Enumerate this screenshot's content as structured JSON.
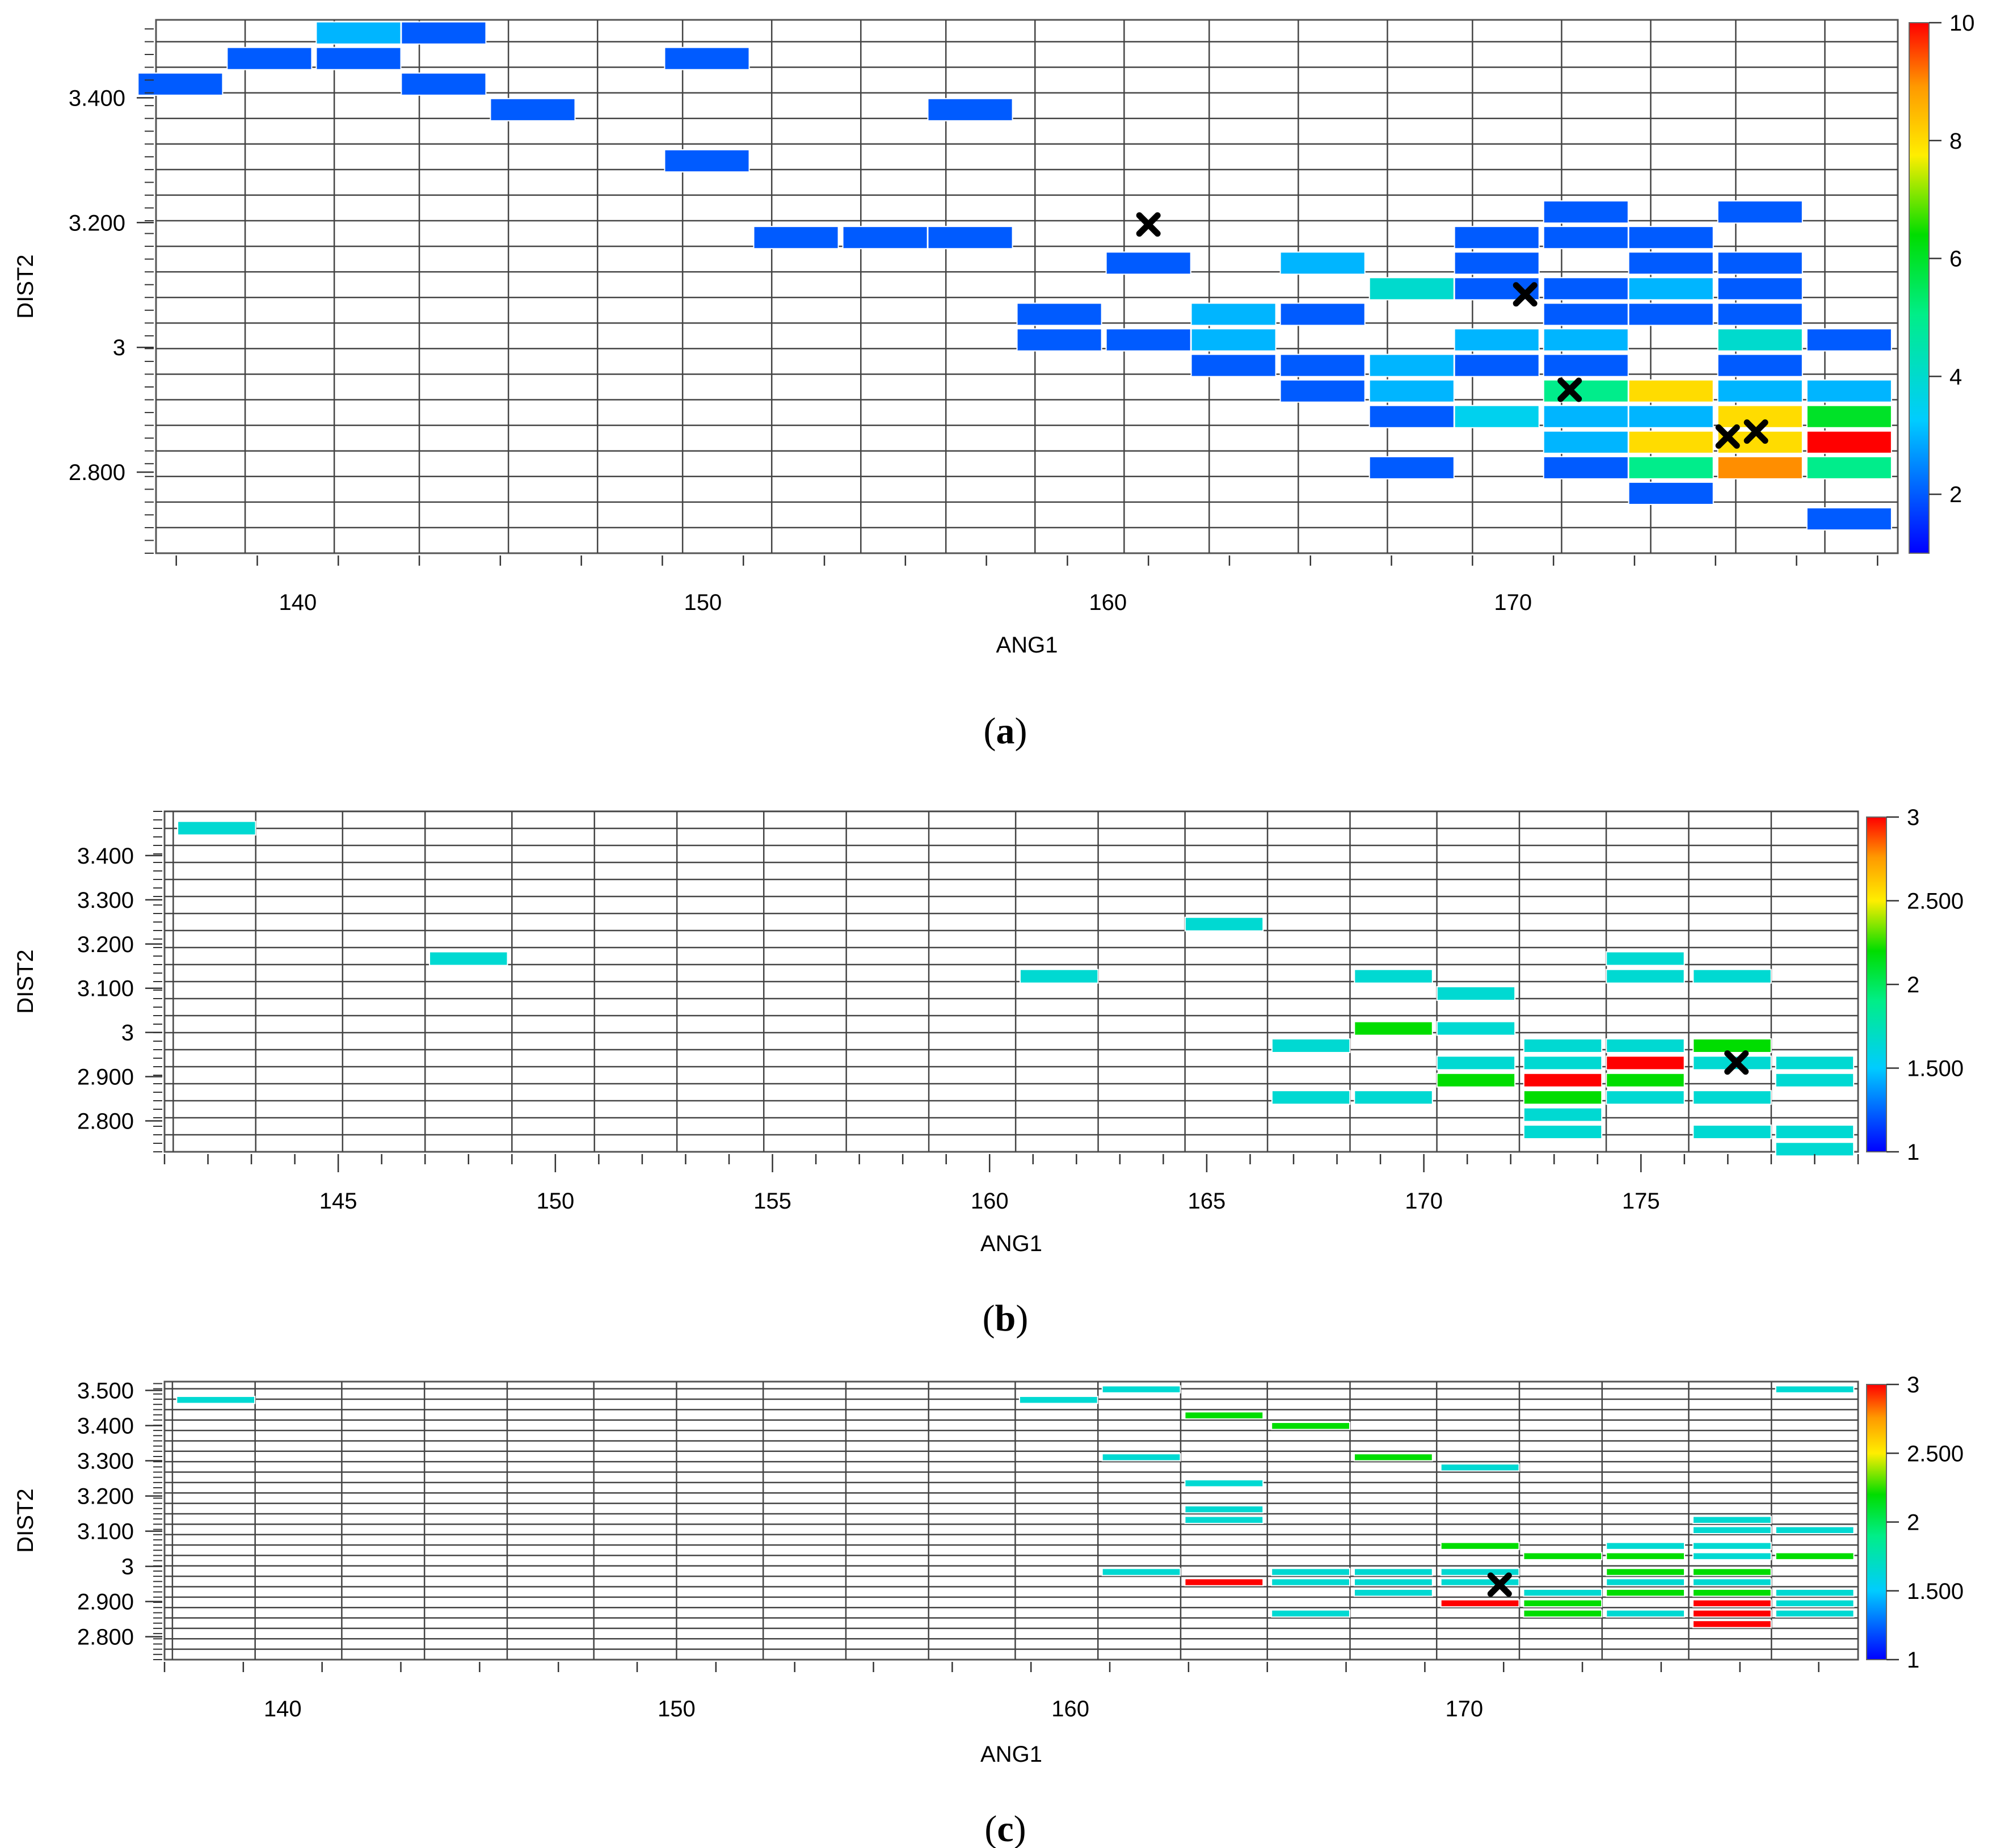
{
  "chart_data": [
    {
      "panel": "a",
      "type": "heatmap",
      "caption_letter": "a",
      "xlabel": "ANG1",
      "ylabel": "DIST2",
      "xlim": [
        136.5,
        179.5
      ],
      "ylim": [
        2.67,
        3.525
      ],
      "x_ticks": [
        "140",
        "150",
        "160",
        "170"
      ],
      "x_tick_values": [
        140,
        150,
        160,
        170
      ],
      "y_ticks": [
        "2.800",
        "3",
        "3.200",
        "3.400"
      ],
      "y_tick_values": [
        2.8,
        3.0,
        3.2,
        3.4
      ],
      "colorbar": {
        "min": 1,
        "max": 10,
        "ticks": [
          "2",
          "4",
          "6",
          "8",
          "10"
        ],
        "tick_values": [
          2,
          4,
          6,
          8,
          10
        ]
      },
      "x_bins": [
        136.5,
        138.7,
        140.9,
        143.0,
        145.2,
        147.4,
        149.5,
        151.7,
        153.9,
        156.0,
        158.2,
        160.4,
        162.5,
        164.7,
        166.9,
        169.0,
        171.2,
        173.4,
        175.5,
        177.7,
        179.9
      ],
      "row_height": 0.041,
      "cells": [
        {
          "x": 141.5,
          "y": 3.504,
          "v": 3.0
        },
        {
          "x": 143.6,
          "y": 3.504,
          "v": 2.0
        },
        {
          "x": 139.3,
          "y": 3.463,
          "v": 2.0
        },
        {
          "x": 141.5,
          "y": 3.463,
          "v": 2.0
        },
        {
          "x": 150.1,
          "y": 3.463,
          "v": 2.0
        },
        {
          "x": 137.1,
          "y": 3.422,
          "v": 2.0
        },
        {
          "x": 143.6,
          "y": 3.422,
          "v": 2.0
        },
        {
          "x": 145.8,
          "y": 3.381,
          "v": 2.0
        },
        {
          "x": 156.6,
          "y": 3.381,
          "v": 2.0
        },
        {
          "x": 150.1,
          "y": 3.299,
          "v": 2.0
        },
        {
          "x": 171.8,
          "y": 3.217,
          "v": 2.0
        },
        {
          "x": 176.1,
          "y": 3.217,
          "v": 2.0
        },
        {
          "x": 152.3,
          "y": 3.176,
          "v": 2.0
        },
        {
          "x": 154.5,
          "y": 3.176,
          "v": 2.0
        },
        {
          "x": 156.6,
          "y": 3.176,
          "v": 2.0
        },
        {
          "x": 169.6,
          "y": 3.176,
          "v": 2.0
        },
        {
          "x": 171.8,
          "y": 3.176,
          "v": 2.0
        },
        {
          "x": 173.9,
          "y": 3.176,
          "v": 2.0
        },
        {
          "x": 161.0,
          "y": 3.135,
          "v": 2.0
        },
        {
          "x": 165.3,
          "y": 3.135,
          "v": 3.0
        },
        {
          "x": 169.6,
          "y": 3.135,
          "v": 2.0
        },
        {
          "x": 173.9,
          "y": 3.135,
          "v": 2.0
        },
        {
          "x": 176.1,
          "y": 3.135,
          "v": 2.0
        },
        {
          "x": 167.5,
          "y": 3.094,
          "v": 4.0
        },
        {
          "x": 169.6,
          "y": 3.094,
          "v": 2.0
        },
        {
          "x": 171.8,
          "y": 3.094,
          "v": 2.0
        },
        {
          "x": 173.9,
          "y": 3.094,
          "v": 3.0
        },
        {
          "x": 176.1,
          "y": 3.094,
          "v": 2.0
        },
        {
          "x": 158.8,
          "y": 3.053,
          "v": 2.0
        },
        {
          "x": 163.1,
          "y": 3.053,
          "v": 3.0
        },
        {
          "x": 165.3,
          "y": 3.053,
          "v": 2.0
        },
        {
          "x": 171.8,
          "y": 3.053,
          "v": 2.0
        },
        {
          "x": 173.9,
          "y": 3.053,
          "v": 2.0
        },
        {
          "x": 176.1,
          "y": 3.053,
          "v": 2.0
        },
        {
          "x": 158.8,
          "y": 3.012,
          "v": 2.0
        },
        {
          "x": 161.0,
          "y": 3.012,
          "v": 2.0
        },
        {
          "x": 163.1,
          "y": 3.012,
          "v": 3.0
        },
        {
          "x": 169.6,
          "y": 3.012,
          "v": 3.0
        },
        {
          "x": 171.8,
          "y": 3.012,
          "v": 3.0
        },
        {
          "x": 176.1,
          "y": 3.012,
          "v": 4.0
        },
        {
          "x": 178.3,
          "y": 3.012,
          "v": 2.0
        },
        {
          "x": 163.1,
          "y": 2.971,
          "v": 2.0
        },
        {
          "x": 165.3,
          "y": 2.971,
          "v": 2.0
        },
        {
          "x": 167.5,
          "y": 2.971,
          "v": 3.0
        },
        {
          "x": 169.6,
          "y": 2.971,
          "v": 2.0
        },
        {
          "x": 171.8,
          "y": 2.971,
          "v": 2.0
        },
        {
          "x": 176.1,
          "y": 2.971,
          "v": 2.0
        },
        {
          "x": 165.3,
          "y": 2.93,
          "v": 2.0
        },
        {
          "x": 167.5,
          "y": 2.93,
          "v": 3.0
        },
        {
          "x": 171.8,
          "y": 2.93,
          "v": 5.0
        },
        {
          "x": 173.9,
          "y": 2.93,
          "v": 8.0
        },
        {
          "x": 176.1,
          "y": 2.93,
          "v": 3.0
        },
        {
          "x": 178.3,
          "y": 2.93,
          "v": 3.0
        },
        {
          "x": 167.5,
          "y": 2.889,
          "v": 2.0
        },
        {
          "x": 169.6,
          "y": 2.889,
          "v": 3.5
        },
        {
          "x": 171.8,
          "y": 2.889,
          "v": 3.0
        },
        {
          "x": 173.9,
          "y": 2.889,
          "v": 3.0
        },
        {
          "x": 176.1,
          "y": 2.889,
          "v": 8.0
        },
        {
          "x": 178.3,
          "y": 2.889,
          "v": 6.0
        },
        {
          "x": 171.8,
          "y": 2.848,
          "v": 3.0
        },
        {
          "x": 173.9,
          "y": 2.848,
          "v": 8.0
        },
        {
          "x": 176.1,
          "y": 2.848,
          "v": 8.0
        },
        {
          "x": 178.3,
          "y": 2.848,
          "v": 10.0
        },
        {
          "x": 167.5,
          "y": 2.807,
          "v": 2.0
        },
        {
          "x": 171.8,
          "y": 2.807,
          "v": 2.0
        },
        {
          "x": 173.9,
          "y": 2.807,
          "v": 5.0
        },
        {
          "x": 176.1,
          "y": 2.807,
          "v": 9.0
        },
        {
          "x": 178.3,
          "y": 2.807,
          "v": 5.0
        },
        {
          "x": 173.9,
          "y": 2.766,
          "v": 2.0
        },
        {
          "x": 178.3,
          "y": 2.725,
          "v": 2.0
        }
      ],
      "markers": [
        {
          "x": 161.0,
          "y": 3.197
        },
        {
          "x": 170.3,
          "y": 3.085
        },
        {
          "x": 171.4,
          "y": 2.932
        },
        {
          "x": 175.3,
          "y": 2.857
        },
        {
          "x": 176.0,
          "y": 2.865
        }
      ]
    },
    {
      "panel": "b",
      "type": "heatmap",
      "caption_letter": "b",
      "xlabel": "ANG1",
      "ylabel": "DIST2",
      "xlim": [
        141.0,
        180.0
      ],
      "ylim": [
        2.73,
        3.5
      ],
      "x_ticks": [
        "145",
        "150",
        "155",
        "160",
        "165",
        "170",
        "175"
      ],
      "x_tick_values": [
        145,
        150,
        155,
        160,
        165,
        170,
        175
      ],
      "y_ticks": [
        "2.800",
        "2.900",
        "3",
        "3.100",
        "3.200",
        "3.300",
        "3.400"
      ],
      "y_tick_values": [
        2.8,
        2.9,
        3.0,
        3.1,
        3.2,
        3.3,
        3.4
      ],
      "colorbar": {
        "min": 1,
        "max": 3,
        "ticks": [
          "1",
          "1.500",
          "2",
          "2.500",
          "3"
        ],
        "tick_values": [
          1,
          1.5,
          2,
          2.5,
          3
        ]
      },
      "x_bins": [
        141.2,
        143.1,
        145.1,
        147.0,
        149.0,
        150.9,
        152.8,
        154.8,
        156.7,
        158.6,
        160.6,
        162.5,
        164.5,
        166.4,
        168.3,
        170.3,
        172.2,
        174.2,
        176.1,
        178.0,
        180.0
      ],
      "row_height": 0.0385,
      "cells": [
        {
          "x": 142.2,
          "y": 3.462,
          "v": 1.65
        },
        {
          "x": 165.4,
          "y": 3.245,
          "v": 1.65
        },
        {
          "x": 148.0,
          "y": 3.167,
          "v": 1.65
        },
        {
          "x": 175.1,
          "y": 3.167,
          "v": 1.65
        },
        {
          "x": 161.6,
          "y": 3.127,
          "v": 1.65
        },
        {
          "x": 169.3,
          "y": 3.127,
          "v": 1.65
        },
        {
          "x": 175.1,
          "y": 3.127,
          "v": 1.65
        },
        {
          "x": 177.1,
          "y": 3.127,
          "v": 1.65
        },
        {
          "x": 171.2,
          "y": 3.088,
          "v": 1.65
        },
        {
          "x": 169.3,
          "y": 3.009,
          "v": 2.2
        },
        {
          "x": 171.2,
          "y": 3.009,
          "v": 1.65
        },
        {
          "x": 167.4,
          "y": 2.97,
          "v": 1.65
        },
        {
          "x": 173.2,
          "y": 2.97,
          "v": 1.65
        },
        {
          "x": 175.1,
          "y": 2.97,
          "v": 1.65
        },
        {
          "x": 177.1,
          "y": 2.97,
          "v": 2.2
        },
        {
          "x": 171.2,
          "y": 2.931,
          "v": 1.65
        },
        {
          "x": 173.2,
          "y": 2.931,
          "v": 1.65
        },
        {
          "x": 175.1,
          "y": 2.931,
          "v": 3.0
        },
        {
          "x": 177.1,
          "y": 2.931,
          "v": 1.65
        },
        {
          "x": 179.0,
          "y": 2.931,
          "v": 1.65
        },
        {
          "x": 171.2,
          "y": 2.892,
          "v": 2.2
        },
        {
          "x": 173.2,
          "y": 2.892,
          "v": 3.0
        },
        {
          "x": 175.1,
          "y": 2.892,
          "v": 2.2
        },
        {
          "x": 179.0,
          "y": 2.892,
          "v": 1.65
        },
        {
          "x": 167.4,
          "y": 2.853,
          "v": 1.65
        },
        {
          "x": 169.3,
          "y": 2.853,
          "v": 1.65
        },
        {
          "x": 173.2,
          "y": 2.853,
          "v": 2.2
        },
        {
          "x": 175.1,
          "y": 2.853,
          "v": 1.65
        },
        {
          "x": 177.1,
          "y": 2.853,
          "v": 1.65
        },
        {
          "x": 173.2,
          "y": 2.814,
          "v": 1.65
        },
        {
          "x": 173.2,
          "y": 2.775,
          "v": 1.65
        },
        {
          "x": 177.1,
          "y": 2.775,
          "v": 1.65
        },
        {
          "x": 179.0,
          "y": 2.775,
          "v": 1.65
        },
        {
          "x": 179.0,
          "y": 2.736,
          "v": 1.65
        }
      ],
      "markers": [
        {
          "x": 177.2,
          "y": 2.932
        }
      ]
    },
    {
      "panel": "c",
      "type": "heatmap",
      "caption_letter": "c",
      "xlabel": "ANG1",
      "ylabel": "DIST2",
      "xlim": [
        137.0,
        180.0
      ],
      "ylim": [
        2.735,
        3.525
      ],
      "x_ticks": [
        "140",
        "150",
        "160",
        "170"
      ],
      "x_tick_values": [
        140,
        150,
        160,
        170
      ],
      "y_ticks": [
        "2.800",
        "2.900",
        "3",
        "3.100",
        "3.200",
        "3.300",
        "3.400",
        "3.500"
      ],
      "y_tick_values": [
        2.8,
        2.9,
        3.0,
        3.1,
        3.2,
        3.3,
        3.4,
        3.5
      ],
      "colorbar": {
        "min": 1,
        "max": 3,
        "ticks": [
          "1",
          "1.500",
          "2",
          "2.500",
          "3"
        ],
        "tick_values": [
          1,
          1.5,
          2,
          2.5,
          3
        ]
      },
      "x_bins": [
        137.2,
        139.3,
        141.5,
        143.6,
        145.7,
        147.9,
        150.0,
        152.2,
        154.3,
        156.4,
        158.6,
        160.7,
        162.8,
        165.0,
        167.1,
        169.3,
        171.4,
        173.5,
        175.7,
        177.8,
        180.0
      ],
      "row_height": 0.0296,
      "cells": [
        {
          "x": 161.8,
          "y": 3.503,
          "v": 1.65
        },
        {
          "x": 178.9,
          "y": 3.503,
          "v": 1.65
        },
        {
          "x": 138.3,
          "y": 3.473,
          "v": 1.65
        },
        {
          "x": 159.7,
          "y": 3.473,
          "v": 1.65
        },
        {
          "x": 163.9,
          "y": 3.429,
          "v": 2.2
        },
        {
          "x": 166.1,
          "y": 3.399,
          "v": 2.2
        },
        {
          "x": 161.8,
          "y": 3.31,
          "v": 1.65
        },
        {
          "x": 168.2,
          "y": 3.31,
          "v": 2.2
        },
        {
          "x": 170.4,
          "y": 3.281,
          "v": 1.65
        },
        {
          "x": 163.9,
          "y": 3.236,
          "v": 1.65
        },
        {
          "x": 163.9,
          "y": 3.162,
          "v": 1.65
        },
        {
          "x": 163.9,
          "y": 3.132,
          "v": 1.65
        },
        {
          "x": 176.8,
          "y": 3.132,
          "v": 1.65
        },
        {
          "x": 176.8,
          "y": 3.103,
          "v": 1.65
        },
        {
          "x": 178.9,
          "y": 3.103,
          "v": 1.65
        },
        {
          "x": 170.4,
          "y": 3.058,
          "v": 2.2
        },
        {
          "x": 174.6,
          "y": 3.058,
          "v": 1.65
        },
        {
          "x": 176.8,
          "y": 3.058,
          "v": 1.65
        },
        {
          "x": 172.5,
          "y": 3.029,
          "v": 2.2
        },
        {
          "x": 174.6,
          "y": 3.029,
          "v": 2.2
        },
        {
          "x": 176.8,
          "y": 3.029,
          "v": 1.65
        },
        {
          "x": 178.9,
          "y": 3.029,
          "v": 2.2
        },
        {
          "x": 161.8,
          "y": 2.984,
          "v": 1.65
        },
        {
          "x": 166.1,
          "y": 2.984,
          "v": 1.65
        },
        {
          "x": 168.2,
          "y": 2.984,
          "v": 1.65
        },
        {
          "x": 170.4,
          "y": 2.984,
          "v": 1.65
        },
        {
          "x": 174.6,
          "y": 2.984,
          "v": 2.2
        },
        {
          "x": 176.8,
          "y": 2.984,
          "v": 2.2
        },
        {
          "x": 163.9,
          "y": 2.955,
          "v": 3.0
        },
        {
          "x": 166.1,
          "y": 2.955,
          "v": 1.65
        },
        {
          "x": 168.2,
          "y": 2.955,
          "v": 1.65
        },
        {
          "x": 170.4,
          "y": 2.955,
          "v": 1.65
        },
        {
          "x": 174.6,
          "y": 2.955,
          "v": 1.65
        },
        {
          "x": 176.8,
          "y": 2.955,
          "v": 1.65
        },
        {
          "x": 168.2,
          "y": 2.925,
          "v": 1.65
        },
        {
          "x": 172.5,
          "y": 2.925,
          "v": 1.65
        },
        {
          "x": 174.6,
          "y": 2.925,
          "v": 2.2
        },
        {
          "x": 176.8,
          "y": 2.925,
          "v": 2.2
        },
        {
          "x": 178.9,
          "y": 2.925,
          "v": 1.65
        },
        {
          "x": 170.4,
          "y": 2.895,
          "v": 3.0
        },
        {
          "x": 172.5,
          "y": 2.895,
          "v": 2.2
        },
        {
          "x": 176.8,
          "y": 2.895,
          "v": 3.0
        },
        {
          "x": 178.9,
          "y": 2.895,
          "v": 1.65
        },
        {
          "x": 166.1,
          "y": 2.866,
          "v": 1.65
        },
        {
          "x": 172.5,
          "y": 2.866,
          "v": 2.2
        },
        {
          "x": 174.6,
          "y": 2.866,
          "v": 1.65
        },
        {
          "x": 176.8,
          "y": 2.866,
          "v": 3.0
        },
        {
          "x": 178.9,
          "y": 2.866,
          "v": 1.65
        },
        {
          "x": 176.8,
          "y": 2.836,
          "v": 3.0
        }
      ],
      "markers": [
        {
          "x": 170.9,
          "y": 2.948
        }
      ]
    }
  ]
}
